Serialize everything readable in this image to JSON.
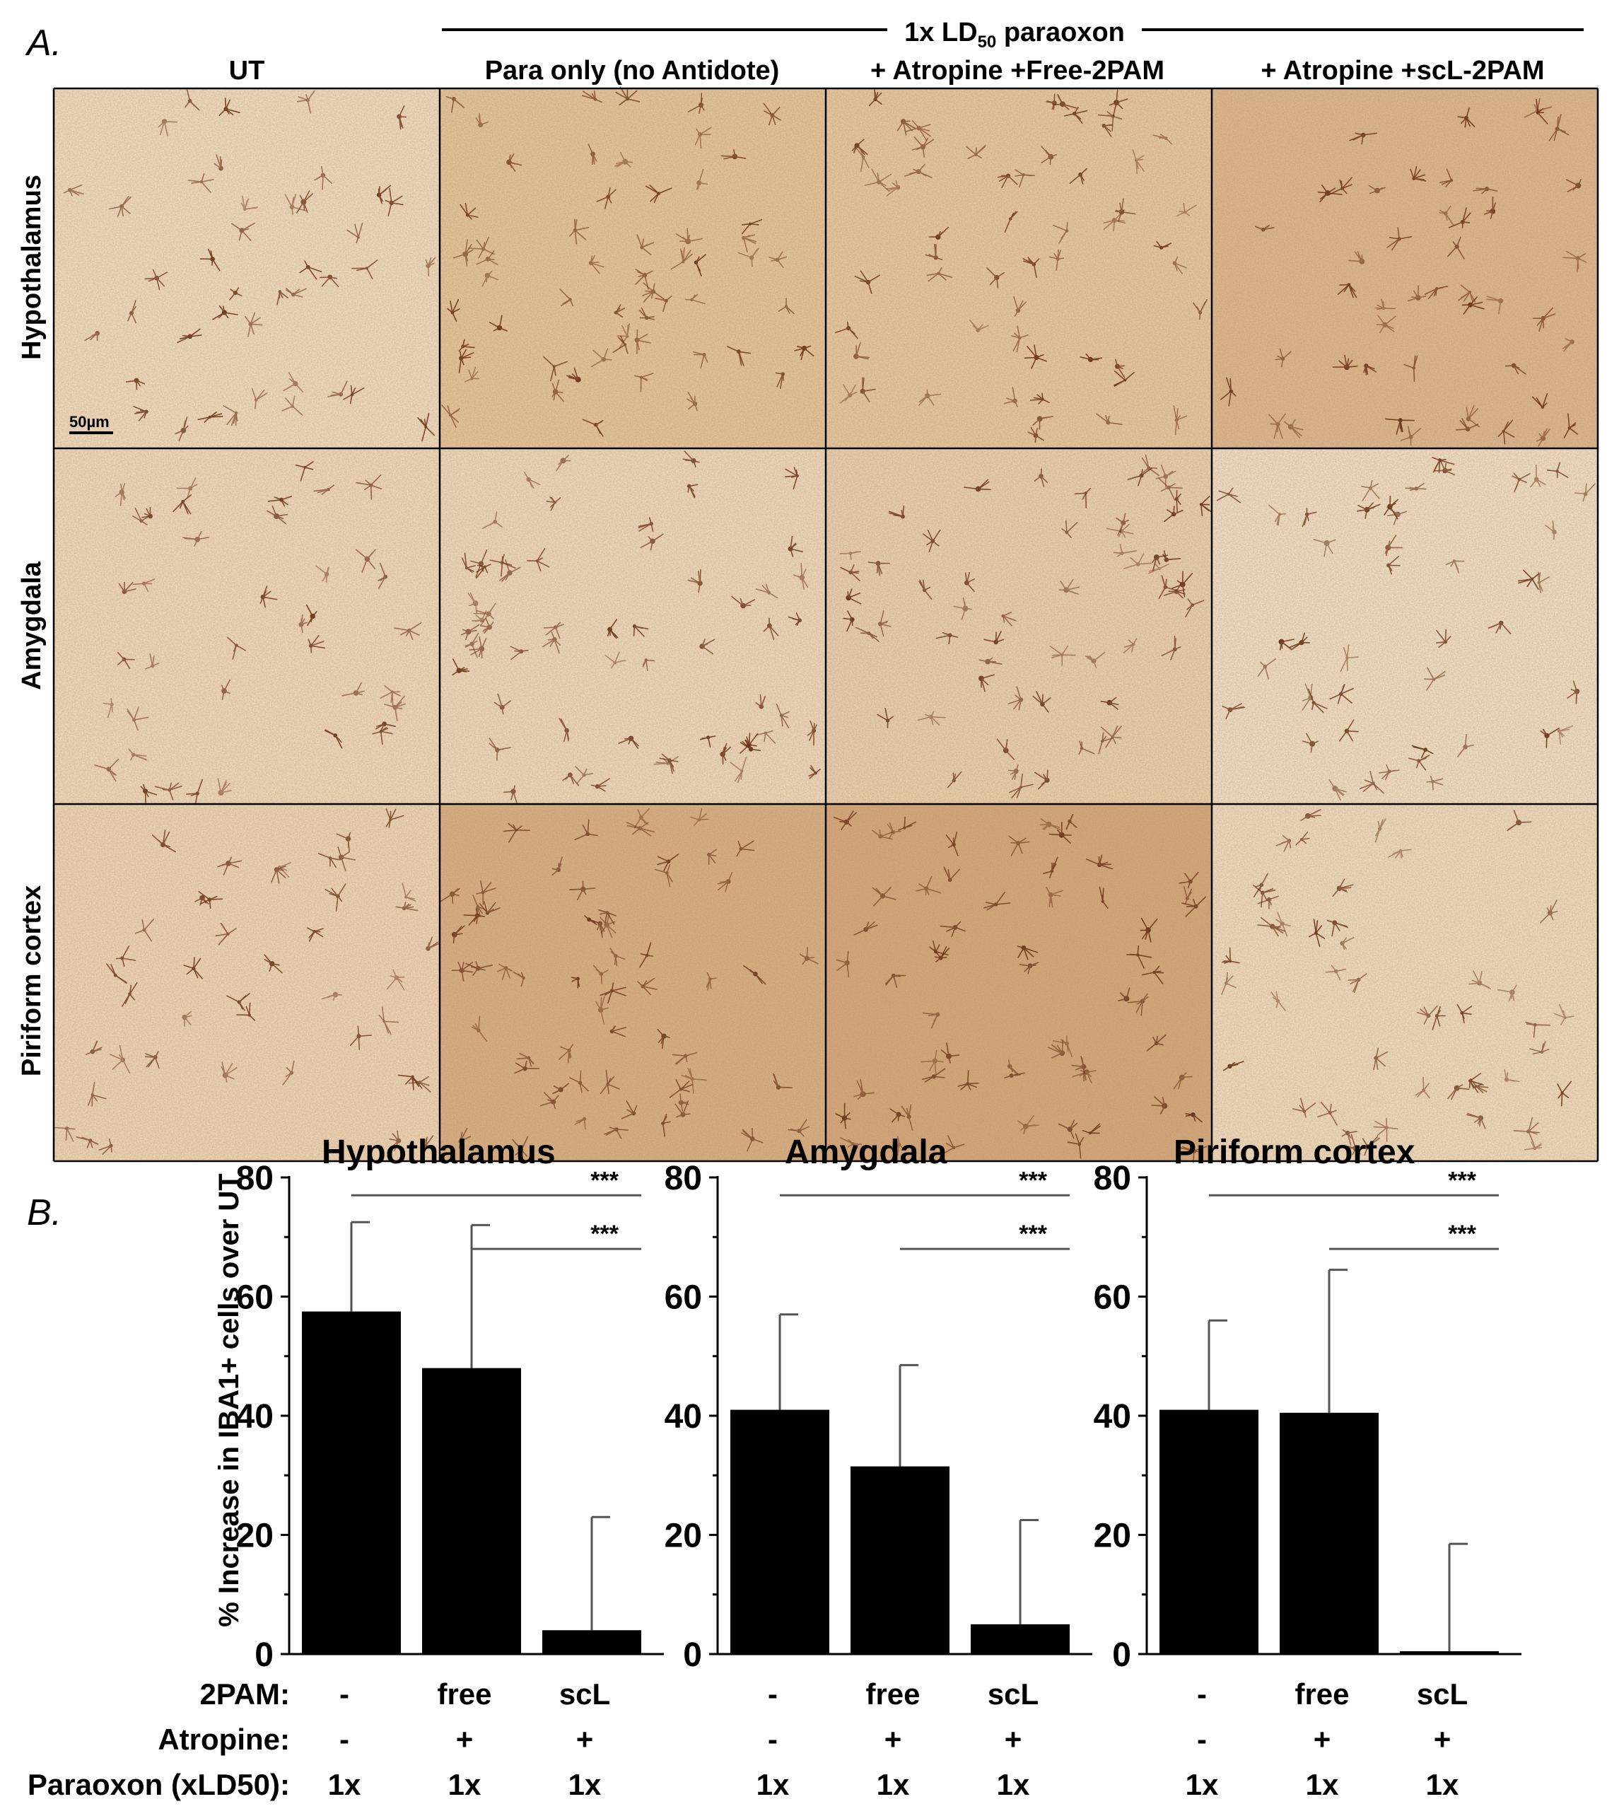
{
  "panel_a": {
    "label": "A.",
    "treatment_header": {
      "pre": "1x LD",
      "sub": "50",
      "post": " paraoxon"
    },
    "columns": [
      "UT",
      "Para only (no Antidote)",
      "+ Atropine +Free-2PAM",
      "+ Atropine +scL-2PAM"
    ],
    "rows": [
      "Hypothalamus",
      "Amygdala",
      "Piriform cortex"
    ],
    "scale_bar": "50µm",
    "tile_tones": [
      [
        "#f1dfc9",
        "#e6c7a3",
        "#e7caa8",
        "#ddb893"
      ],
      [
        "#f0dcc4",
        "#efdcc4",
        "#ead3b6",
        "#f2e3d0"
      ],
      [
        "#efd9c0",
        "#d9b18a",
        "#d4a981",
        "#f0dec8"
      ]
    ],
    "cell_density": [
      [
        0.45,
        0.85,
        0.8,
        0.55
      ],
      [
        0.35,
        0.9,
        0.85,
        0.5
      ],
      [
        0.45,
        0.95,
        0.95,
        0.55
      ]
    ]
  },
  "panel_b": {
    "label": "B.",
    "ylabel": "% Increase in IBA1+ cells over UT",
    "row_labels": [
      "2PAM:",
      "Atropine:",
      "Paraoxon (xLD50):"
    ],
    "significance": "***"
  },
  "chart_data": [
    {
      "type": "bar",
      "title": "Hypothalamus",
      "categories": [
        "-",
        "free",
        "scL"
      ],
      "values": [
        57.5,
        48,
        4
      ],
      "errors": [
        15,
        24,
        19
      ],
      "ylim": [
        0,
        80
      ],
      "yticks": [
        0,
        20,
        40,
        60,
        80
      ],
      "atropine": [
        "-",
        "+",
        "+"
      ],
      "paraoxon": [
        "1x",
        "1x",
        "1x"
      ],
      "sig_brackets": [
        {
          "from": 0,
          "to": 2,
          "label": "***",
          "y": 77
        },
        {
          "from": 1,
          "to": 2,
          "label": "***",
          "y": 68
        }
      ]
    },
    {
      "type": "bar",
      "title": "Amygdala",
      "categories": [
        "-",
        "free",
        "scL"
      ],
      "values": [
        41,
        31.5,
        5
      ],
      "errors": [
        16,
        17,
        17.5
      ],
      "ylim": [
        0,
        80
      ],
      "yticks": [
        0,
        20,
        40,
        60,
        80
      ],
      "atropine": [
        "-",
        "+",
        "+"
      ],
      "paraoxon": [
        "1x",
        "1x",
        "1x"
      ],
      "sig_brackets": [
        {
          "from": 0,
          "to": 2,
          "label": "***",
          "y": 77
        },
        {
          "from": 1,
          "to": 2,
          "label": "***",
          "y": 68
        }
      ]
    },
    {
      "type": "bar",
      "title": "Piriform cortex",
      "categories": [
        "-",
        "free",
        "scL"
      ],
      "values": [
        41,
        40.5,
        0
      ],
      "errors": [
        15,
        24,
        18.5
      ],
      "ylim": [
        0,
        80
      ],
      "yticks": [
        0,
        20,
        40,
        60,
        80
      ],
      "atropine": [
        "-",
        "+",
        "+"
      ],
      "paraoxon": [
        "1x",
        "1x",
        "1x"
      ],
      "sig_brackets": [
        {
          "from": 0,
          "to": 2,
          "label": "***",
          "y": 77
        },
        {
          "from": 1,
          "to": 2,
          "label": "***",
          "y": 68
        }
      ]
    }
  ]
}
